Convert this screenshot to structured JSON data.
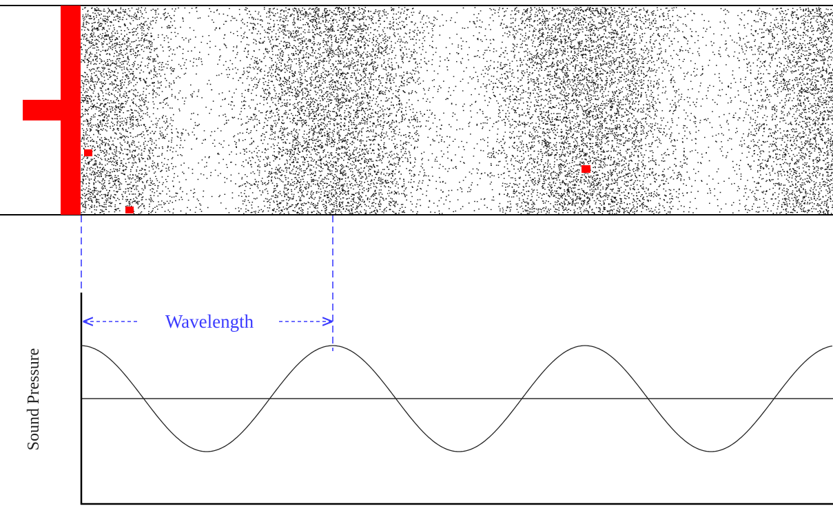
{
  "labels": {
    "wavelength": "Wavelength",
    "axis": "Sound Pressure"
  }
}
